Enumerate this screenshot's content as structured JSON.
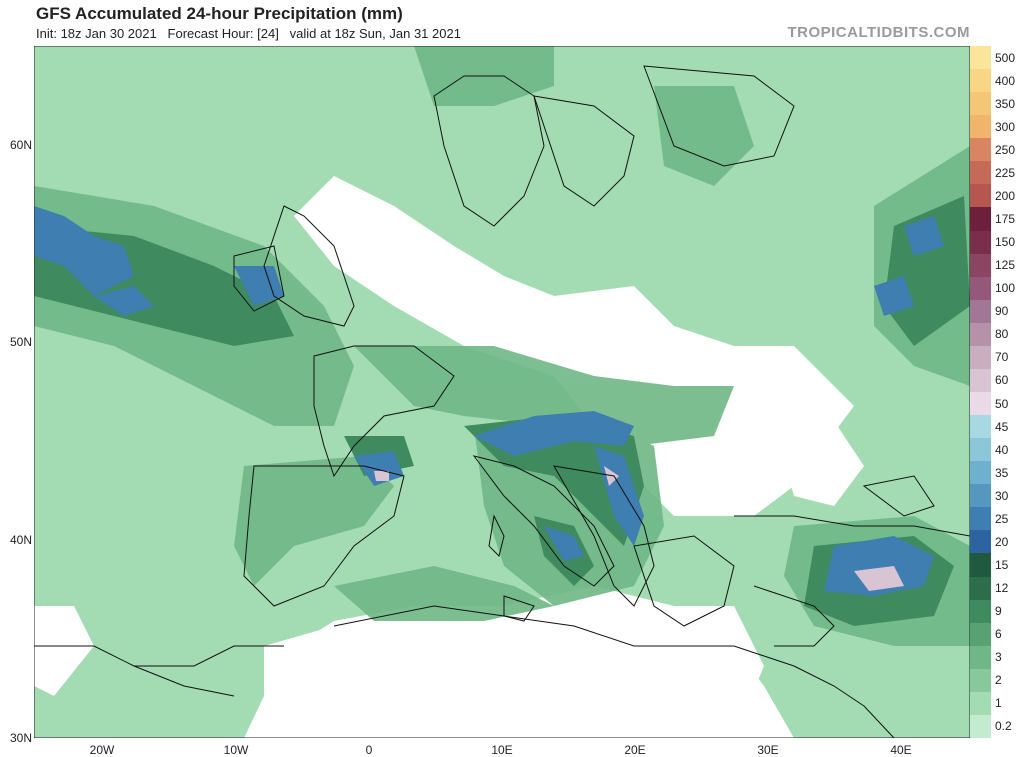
{
  "header": {
    "title": "GFS Accumulated 24-hour Precipitation (mm)",
    "subtitle": "Init: 18z Jan 30 2021   Forecast Hour: [24]   valid at 18z Sun, Jan 31 2021",
    "brand": "TROPICALTIDBITS.COM"
  },
  "axes": {
    "lat_labels": [
      "60N",
      "50N",
      "40N",
      "30N"
    ],
    "lon_labels": [
      "20W",
      "10W",
      "0",
      "10E",
      "20E",
      "30E",
      "40E"
    ]
  },
  "legend": {
    "labels": [
      "500",
      "400",
      "350",
      "300",
      "250",
      "225",
      "200",
      "175",
      "150",
      "125",
      "100",
      "90",
      "80",
      "70",
      "60",
      "50",
      "45",
      "40",
      "35",
      "30",
      "25",
      "20",
      "15",
      "12",
      "9",
      "6",
      "3",
      "2",
      "1",
      "0.2"
    ],
    "colors": [
      "#fbe59a",
      "#f8d685",
      "#f4c777",
      "#f0b46a",
      "#d98561",
      "#c56a57",
      "#b5574e",
      "#6e1f3b",
      "#7b2d4c",
      "#8b4563",
      "#93587a",
      "#a07794",
      "#b592aa",
      "#c9aec1",
      "#d9c4d4",
      "#ead9e6",
      "#a7d8e4",
      "#8bc6d9",
      "#6eb0cd",
      "#5597bf",
      "#3f7eb0",
      "#2b64a0",
      "#1f5a3f",
      "#2c6e4b",
      "#3f8a5e",
      "#57a172",
      "#6fb786",
      "#87c99b",
      "#a3dcb3",
      "#c2ebd0"
    ]
  },
  "map": {
    "background": "#ffffff",
    "precip_light": "#a3dcb3",
    "precip_mid": "#6fb786",
    "precip_heavy": "#3f8a5e",
    "precip_vheavy": "#2c6e4b",
    "precip_blue": "#3f7eb0",
    "precip_pink": "#d9c4d4",
    "coastline": "#111111"
  }
}
